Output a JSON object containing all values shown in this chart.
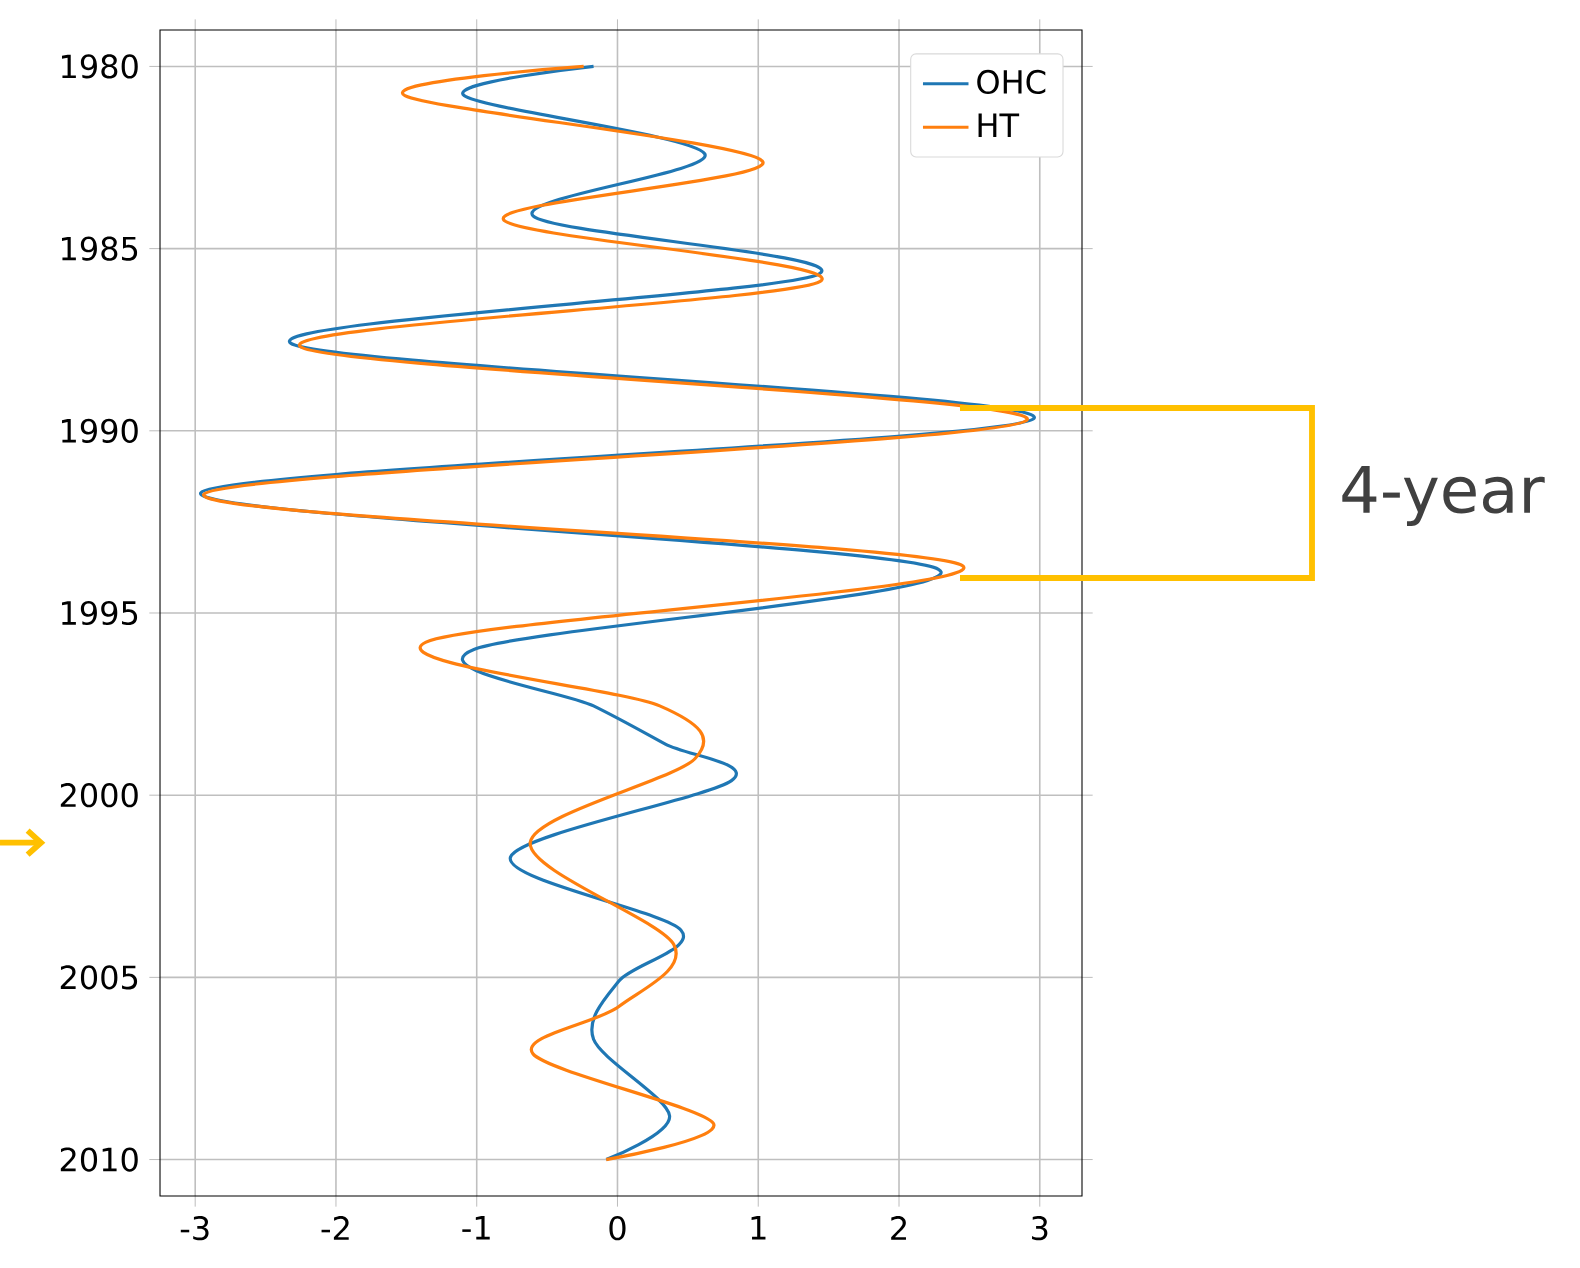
{
  "chart_data": {
    "type": "line",
    "series": [
      {
        "name": "OHC",
        "color": "#1f77b4",
        "x": [
          -0.17,
          -1.09,
          0.62,
          -0.6,
          1.43,
          -2.32,
          2.96,
          -2.96,
          2.28,
          -1.02,
          -0.17,
          0.34,
          0.81,
          -0.76,
          0.45,
          0.01,
          -0.17,
          0.37,
          -0.08
        ],
        "values": [
          1980,
          1980.8,
          1982.4,
          1984.1,
          1985.7,
          1987.6,
          1989.65,
          1991.7,
          1993.8,
          1996.0,
          1997.55,
          1998.6,
          1999.6,
          2001.7,
          2003.7,
          2005.1,
          2006.7,
          2008.8,
          2010
        ]
      },
      {
        "name": "HT",
        "color": "#ff7f0e",
        "x": [
          -0.24,
          -1.51,
          1.03,
          -0.81,
          1.44,
          -2.25,
          2.91,
          -2.94,
          2.45,
          -1.36,
          0.3,
          0.55,
          -0.62,
          0.4,
          0.01,
          -0.6,
          0.68,
          -0.08
        ],
        "values": [
          1980,
          1980.8,
          1982.6,
          1984.2,
          1985.9,
          1987.7,
          1989.7,
          1991.75,
          1993.7,
          1995.8,
          1997.55,
          1999.0,
          2001.3,
          2004.1,
          2005.8,
          2007.1,
          2009.0,
          2010
        ]
      }
    ],
    "xlim": [
      -3.25,
      3.3
    ],
    "ylim": [
      2011,
      1979
    ],
    "xticks": [
      -3,
      -2,
      -1,
      0,
      1,
      2,
      3
    ],
    "yticks": [
      1980,
      1985,
      1990,
      1995,
      2000,
      2005,
      2010
    ],
    "grid": true,
    "legend": "top right",
    "marker": "none",
    "annotations": [
      "4-year"
    ]
  }
}
